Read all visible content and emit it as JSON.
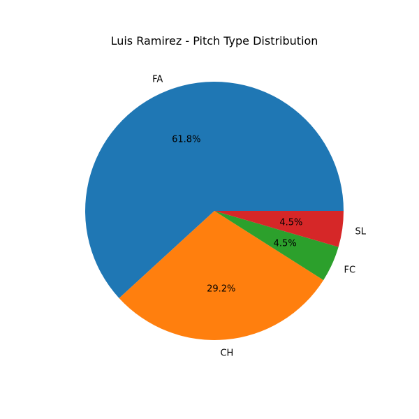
{
  "chart_data": {
    "type": "pie",
    "title": "Luis Ramirez - Pitch Type Distribution",
    "categories": [
      "FA",
      "CH",
      "FC",
      "SL"
    ],
    "values": [
      61.8,
      29.2,
      4.5,
      4.5
    ],
    "value_labels": [
      "61.8%",
      "29.2%",
      "4.5%",
      "4.5%"
    ],
    "colors": [
      "#1f77b4",
      "#ff7f0e",
      "#2ca02c",
      "#d62728"
    ],
    "start_angle_deg": 0,
    "direction": "counterclockwise",
    "legend": "none"
  }
}
